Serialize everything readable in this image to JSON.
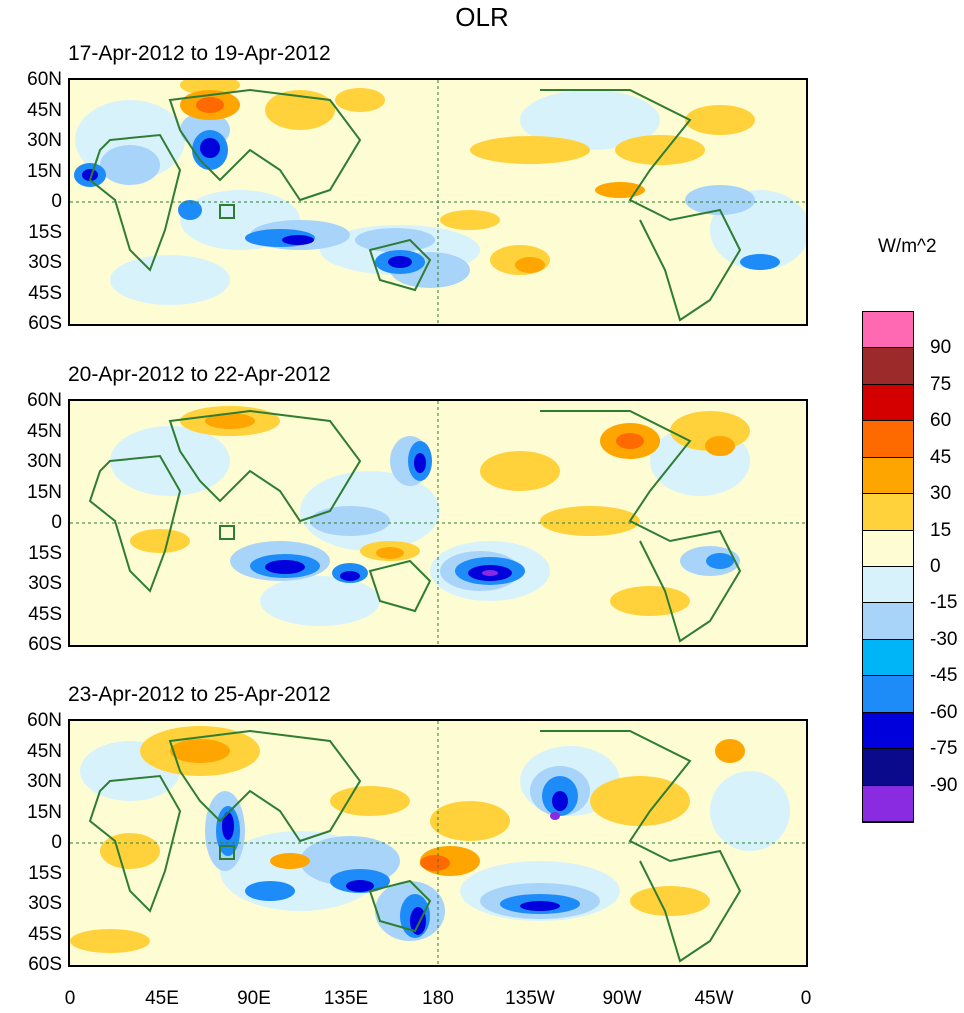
{
  "title": "OLR",
  "colorbar": {
    "unit": "W/m^2",
    "levels": [
      "90",
      "75",
      "60",
      "45",
      "30",
      "15",
      "0",
      "-15",
      "-30",
      "-45",
      "-60",
      "-75",
      "-90"
    ],
    "colors": [
      "#ff69b4",
      "#9c2a2a",
      "#d40000",
      "#ff6a00",
      "#ffa500",
      "#ffd23c",
      "#fefcd2",
      "#d8f2fc",
      "#a8d4fa",
      "#00b4f8",
      "#1e8cf8",
      "#0000dc",
      "#0a0a8c",
      "#8a2be2"
    ]
  },
  "x_ticks": [
    "0",
    "45E",
    "90E",
    "135E",
    "180",
    "135W",
    "90W",
    "45W",
    "0"
  ],
  "y_ticks": [
    "60N",
    "45N",
    "30N",
    "15N",
    "0",
    "15S",
    "30S",
    "45S",
    "60S"
  ],
  "panels": [
    {
      "title": "17-Apr-2012 to 19-Apr-2012"
    },
    {
      "title": "20-Apr-2012 to 22-Apr-2012"
    },
    {
      "title": "23-Apr-2012 to 25-Apr-2012"
    }
  ]
}
